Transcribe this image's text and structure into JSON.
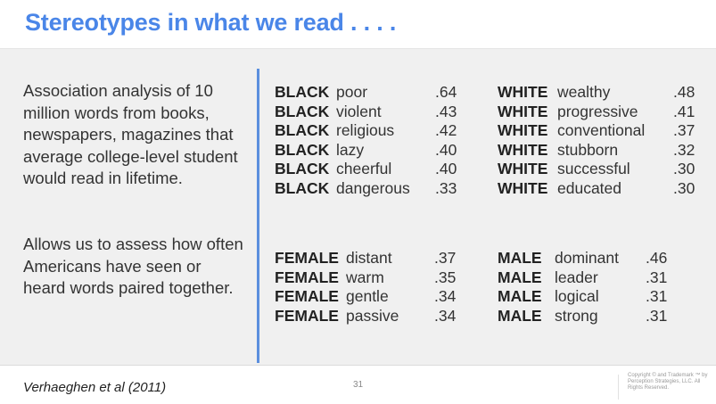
{
  "title": "Stereotypes in what we read . . . .",
  "left": {
    "paragraph1": "Association analysis of 10 million words from books, newspapers, magazines that average college-level student would read in lifetime.",
    "paragraph2": "Allows us to assess how often Americans have seen or heard words paired together."
  },
  "race": {
    "black": [
      {
        "group": "BLACK",
        "word": "poor",
        "value": ".64"
      },
      {
        "group": "BLACK",
        "word": "violent",
        "value": ".43"
      },
      {
        "group": "BLACK",
        "word": "religious",
        "value": ".42"
      },
      {
        "group": "BLACK",
        "word": "lazy",
        "value": ".40"
      },
      {
        "group": "BLACK",
        "word": "cheerful",
        "value": ".40"
      },
      {
        "group": "BLACK",
        "word": "dangerous",
        "value": ".33"
      }
    ],
    "white": [
      {
        "group": "WHITE",
        "word": "wealthy",
        "value": ".48"
      },
      {
        "group": "WHITE",
        "word": "progressive",
        "value": ".41"
      },
      {
        "group": "WHITE",
        "word": "conventional",
        "value": ".37"
      },
      {
        "group": "WHITE",
        "word": "stubborn",
        "value": ".32"
      },
      {
        "group": "WHITE",
        "word": "successful",
        "value": ".30"
      },
      {
        "group": "WHITE",
        "word": "educated",
        "value": ".30"
      }
    ]
  },
  "gender": {
    "female": [
      {
        "group": "FEMALE",
        "word": "distant",
        "value": ".37"
      },
      {
        "group": "FEMALE",
        "word": "warm",
        "value": ".35"
      },
      {
        "group": "FEMALE",
        "word": "gentle",
        "value": ".34"
      },
      {
        "group": "FEMALE",
        "word": "passive",
        "value": ".34"
      }
    ],
    "male": [
      {
        "group": "MALE",
        "word": "dominant",
        "value": ".46"
      },
      {
        "group": "MALE",
        "word": "leader",
        "value": ".31"
      },
      {
        "group": "MALE",
        "word": "logical",
        "value": ".31"
      },
      {
        "group": "MALE",
        "word": "strong",
        "value": ".31"
      }
    ]
  },
  "footer": {
    "citation": "Verhaeghen et al (2011)",
    "page_number": "31",
    "copyright": "Copyright © and Trademark ™ by Perception Strategies, LLC. All Rights Reserved."
  },
  "colors": {
    "title": "#4a86e8",
    "divider": "#5b8fde",
    "content_background": "#f0f0f0"
  }
}
